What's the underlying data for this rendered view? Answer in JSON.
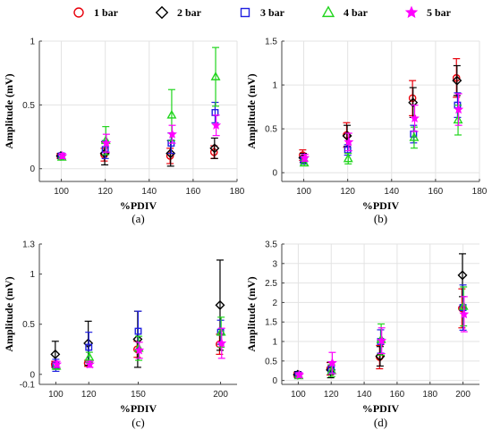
{
  "legend": [
    {
      "name": "1 bar",
      "color": "#e8000b",
      "marker": "circle"
    },
    {
      "name": "2 bar",
      "color": "#000000",
      "marker": "diamond"
    },
    {
      "name": "3 bar",
      "color": "#1f1fe0",
      "marker": "square"
    },
    {
      "name": "4 bar",
      "color": "#22d51e",
      "marker": "triangle"
    },
    {
      "name": "5 bar",
      "color": "#ff00ff",
      "marker": "star"
    }
  ],
  "chart_data": [
    {
      "type": "scatter",
      "caption": "(a)",
      "xlabel": "%PDIV",
      "ylabel": "Amplitude (mV)",
      "xlim": [
        90,
        180
      ],
      "ylim": [
        -0.1,
        1
      ],
      "xticks": [
        100,
        120,
        140,
        160,
        180
      ],
      "yticks": [
        0,
        0.5,
        1
      ],
      "ytick_labels": [
        "0",
        "0.5",
        "1"
      ],
      "grid": true,
      "x": [
        100,
        120,
        150,
        170
      ],
      "series": [
        {
          "name": "1 bar",
          "y": [
            0.1,
            0.11,
            0.1,
            0.13
          ],
          "err": [
            0.02,
            0.05,
            0.06,
            0.05
          ]
        },
        {
          "name": "2 bar",
          "y": [
            0.1,
            0.12,
            0.12,
            0.16
          ],
          "err": [
            0.02,
            0.09,
            0.1,
            0.08
          ]
        },
        {
          "name": "3 bar",
          "y": [
            0.1,
            0.15,
            0.2,
            0.44
          ],
          "err": [
            0.02,
            0.07,
            0.08,
            0.08
          ]
        },
        {
          "name": "4 bar",
          "y": [
            0.09,
            0.22,
            0.42,
            0.72
          ],
          "err": [
            0.02,
            0.11,
            0.2,
            0.23
          ]
        },
        {
          "name": "5 bar",
          "y": [
            0.1,
            0.2,
            0.27,
            0.34
          ],
          "err": [
            0.02,
            0.07,
            0.07,
            0.08
          ]
        }
      ]
    },
    {
      "type": "scatter",
      "caption": "(b)",
      "xlabel": "%PDIV",
      "ylabel": "Amplitude (mV)",
      "xlim": [
        90,
        180
      ],
      "ylim": [
        -0.1,
        1.5
      ],
      "xticks": [
        100,
        120,
        140,
        160,
        180
      ],
      "yticks": [
        0,
        0.5,
        1,
        1.5
      ],
      "ytick_labels": [
        "0",
        "0.5",
        "1",
        "1.5"
      ],
      "grid": true,
      "x": [
        100,
        120,
        150,
        170
      ],
      "series": [
        {
          "name": "1 bar",
          "y": [
            0.2,
            0.43,
            0.85,
            1.08
          ],
          "err": [
            0.06,
            0.14,
            0.2,
            0.22
          ]
        },
        {
          "name": "2 bar",
          "y": [
            0.17,
            0.42,
            0.8,
            1.05
          ],
          "err": [
            0.05,
            0.12,
            0.17,
            0.17
          ]
        },
        {
          "name": "3 bar",
          "y": [
            0.14,
            0.26,
            0.44,
            0.77
          ],
          "err": [
            0.04,
            0.06,
            0.1,
            0.14
          ]
        },
        {
          "name": "4 bar",
          "y": [
            0.11,
            0.16,
            0.4,
            0.6
          ],
          "err": [
            0.03,
            0.06,
            0.12,
            0.17
          ]
        },
        {
          "name": "5 bar",
          "y": [
            0.17,
            0.35,
            0.62,
            0.72
          ],
          "err": [
            0.04,
            0.1,
            0.15,
            0.18
          ]
        }
      ]
    },
    {
      "type": "scatter",
      "caption": "(c)",
      "xlabel": "%PDIV",
      "ylabel": "Amplitude (mV)",
      "xlim": [
        90,
        210
      ],
      "ylim": [
        -0.1,
        1.3
      ],
      "xticks": [
        100,
        120,
        150,
        200
      ],
      "yticks": [
        -0.1,
        0,
        0.5,
        1,
        1.3
      ],
      "ytick_labels": [
        "-0.1",
        "0",
        "0.5",
        "1",
        "1.3"
      ],
      "grid": false,
      "x": [
        100,
        120,
        150,
        200
      ],
      "series": [
        {
          "name": "1 bar",
          "y": [
            0.1,
            0.11,
            0.25,
            0.3
          ],
          "err": [
            0.03,
            0.03,
            0.08,
            0.1
          ]
        },
        {
          "name": "2 bar",
          "y": [
            0.2,
            0.31,
            0.35,
            0.69
          ],
          "err": [
            0.13,
            0.22,
            0.28,
            0.45
          ]
        },
        {
          "name": "3 bar",
          "y": [
            0.09,
            0.27,
            0.43,
            0.42
          ],
          "err": [
            0.06,
            0.15,
            0.2,
            0.12
          ]
        },
        {
          "name": "4 bar",
          "y": [
            0.08,
            0.17,
            0.26,
            0.42
          ],
          "err": [
            0.03,
            0.05,
            0.12,
            0.15
          ]
        },
        {
          "name": "5 bar",
          "y": [
            0.1,
            0.1,
            0.24,
            0.31
          ],
          "err": [
            0.03,
            0.03,
            0.08,
            0.15
          ]
        }
      ]
    },
    {
      "type": "scatter",
      "caption": "(d)",
      "xlabel": "%PDIV",
      "ylabel": "Amplitude (mV)",
      "xlim": [
        90,
        210
      ],
      "ylim": [
        -0.1,
        3.5
      ],
      "xticks": [
        100,
        120,
        140,
        160,
        180,
        200
      ],
      "yticks": [
        0,
        0.5,
        1,
        1.5,
        2,
        2.5,
        3,
        3.5
      ],
      "ytick_labels": [
        "0",
        "0.5",
        "1",
        "1.5",
        "2",
        "2.5",
        "3",
        "3.5"
      ],
      "grid": true,
      "x": [
        100,
        120,
        150,
        200
      ],
      "series": [
        {
          "name": "1 bar",
          "y": [
            0.15,
            0.3,
            0.6,
            1.85
          ],
          "err": [
            0.06,
            0.16,
            0.3,
            0.5
          ]
        },
        {
          "name": "2 bar",
          "y": [
            0.15,
            0.27,
            0.62,
            2.7
          ],
          "err": [
            0.08,
            0.2,
            0.25,
            0.55
          ]
        },
        {
          "name": "3 bar",
          "y": [
            0.14,
            0.28,
            1.0,
            1.87
          ],
          "err": [
            0.06,
            0.12,
            0.3,
            0.58
          ]
        },
        {
          "name": "4 bar",
          "y": [
            0.12,
            0.25,
            1.05,
            1.9
          ],
          "err": [
            0.05,
            0.15,
            0.4,
            0.5
          ]
        },
        {
          "name": "5 bar",
          "y": [
            0.14,
            0.45,
            1.02,
            1.7
          ],
          "err": [
            0.06,
            0.27,
            0.33,
            0.45
          ]
        }
      ]
    }
  ]
}
